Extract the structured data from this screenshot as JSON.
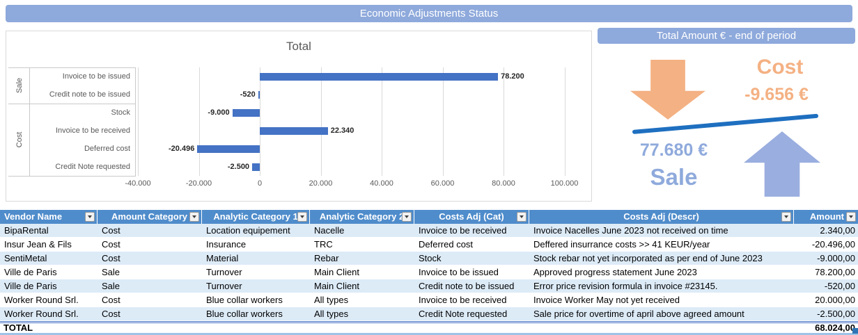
{
  "title_banner": "Economic Adjustments Status",
  "chart_data": {
    "type": "bar",
    "orientation": "horizontal",
    "title": "Total",
    "groups": [
      {
        "name": "Sale",
        "count": 2
      },
      {
        "name": "Cost",
        "count": 4
      }
    ],
    "categories": [
      "Invoice to be issued",
      "Credit note to be issued",
      "Stock",
      "Invoice to be received",
      "Deferred cost",
      "Credit Note requested"
    ],
    "values": [
      78200,
      -520,
      -9000,
      22340,
      -20496,
      -2500
    ],
    "value_labels": [
      "78.200",
      "-520",
      "-9.000",
      "22.340",
      "-20.496",
      "-2.500"
    ],
    "x_tick_values": [
      -40000,
      -20000,
      0,
      20000,
      40000,
      60000,
      80000,
      100000
    ],
    "x_tick_labels": [
      "-40.000",
      "-20.000",
      "0",
      "20.000",
      "40.000",
      "60.000",
      "80.000",
      "100.000"
    ],
    "xlim": [
      -40000,
      100000
    ],
    "bar_color": "#4472C4",
    "grid": true,
    "legend": "none"
  },
  "summary_panel": {
    "header": "Total Amount € - end of period",
    "cost_label": "Cost",
    "cost_value": "-9.656 €",
    "sale_value": "77.680 €",
    "sale_label": "Sale",
    "colors": {
      "orange": "#F4B183",
      "light_blue": "#8FAADC",
      "line_blue": "#1E6FC0"
    }
  },
  "table": {
    "columns": [
      "Vendor Name",
      "Amount Category",
      "Analytic Category 1",
      "Analytic Category 2",
      "Costs Adj (Cat)",
      "Costs Adj (Descr)",
      "Amount"
    ],
    "rows": [
      [
        "BipaRental",
        "Cost",
        "Location equipement",
        "Nacelle",
        "Invoice to be received",
        "Invoice Nacelles June 2023 not received on time",
        "2.340,00"
      ],
      [
        "Insur Jean & Fils",
        "Cost",
        "Insurance",
        "TRC",
        "Deferred cost",
        "Deffered insurrance costs >> 41 KEUR/year",
        "-20.496,00"
      ],
      [
        "SentiMetal",
        "Cost",
        "Material",
        "Rebar",
        "Stock",
        "Stock rebar not yet incorporated as per end of June 2023",
        "-9.000,00"
      ],
      [
        "Ville de Paris",
        "Sale",
        "Turnover",
        "Main Client",
        "Invoice to be issued",
        "Approved progress statement June 2023",
        "78.200,00"
      ],
      [
        "Ville de Paris",
        "Sale",
        "Turnover",
        "Main Client",
        "Credit note to be issued",
        "Error price revision formula in invoice #23145.",
        "-520,00"
      ],
      [
        "Worker Round Srl.",
        "Cost",
        "Blue collar workers",
        "All types",
        "Invoice to be received",
        "Invoice Worker May not yet received",
        "20.000,00"
      ],
      [
        "Worker Round Srl.",
        "Cost",
        "Blue collar workers",
        "All types",
        "Credit Note requested",
        "Sale price for overtime of april above agreed amount",
        "-2.500,00"
      ]
    ],
    "total_label": "TOTAL",
    "total_value": "68.024,00",
    "header_color": "#4F8CCB",
    "band_color": "#DDEBF7"
  }
}
